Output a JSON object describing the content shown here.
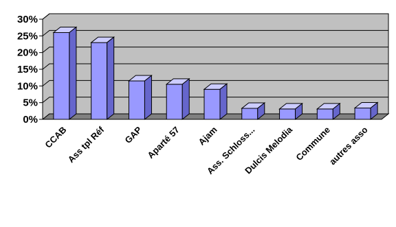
{
  "chart_data": {
    "type": "bar",
    "categories": [
      "CCAB",
      "Ass tpl Réf",
      "GAP",
      "Aparté 57",
      "Ajam",
      "Ass. Schloss...",
      "Dulcis Melodia",
      "Commune",
      "autres asso"
    ],
    "values": [
      0.26,
      0.23,
      0.115,
      0.105,
      0.09,
      0.033,
      0.031,
      0.031,
      0.034
    ],
    "yticks": [
      "0%",
      "5%",
      "10%",
      "15%",
      "20%",
      "25%",
      "30%"
    ],
    "ylim": [
      0,
      0.3
    ],
    "grid": true,
    "legend": "none",
    "title": "",
    "xlabel": "",
    "ylabel": "",
    "colors": {
      "bar_front": "#9999ff",
      "bar_top": "#ccccff",
      "bar_side": "#6666cc",
      "wall": "#c0c0c0",
      "floor": "#808080",
      "gridline": "#000000"
    }
  }
}
